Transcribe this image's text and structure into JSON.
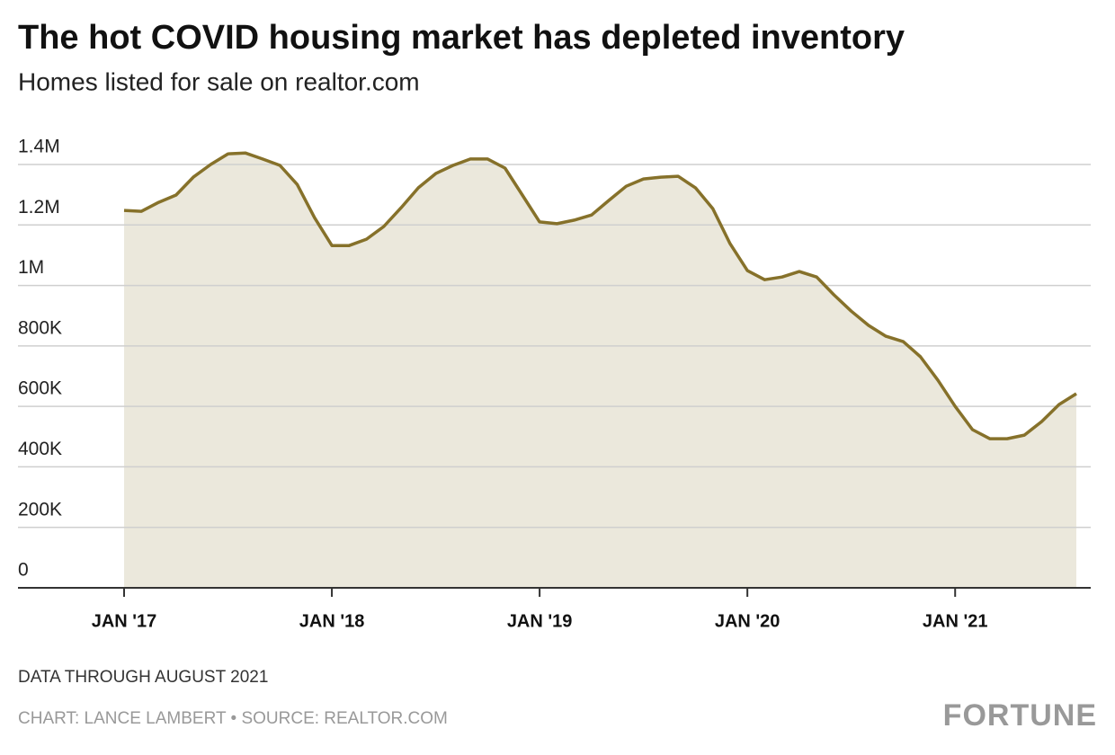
{
  "chart_data": {
    "type": "area",
    "title": "The hot COVID housing market has depleted inventory",
    "subtitle": "Homes listed for sale on realtor.com",
    "note": "DATA THROUGH AUGUST 2021",
    "credit": "CHART: LANCE LAMBERT • SOURCE: REALTOR.COM",
    "brand": "FORTUNE",
    "categories": [
      "JAN '17",
      null,
      null,
      null,
      null,
      null,
      null,
      null,
      null,
      null,
      null,
      null,
      "JAN '18",
      null,
      null,
      null,
      null,
      null,
      null,
      null,
      null,
      null,
      null,
      null,
      "JAN '19",
      null,
      null,
      null,
      null,
      null,
      null,
      null,
      null,
      null,
      null,
      null,
      "JAN '20",
      null,
      null,
      null,
      null,
      null,
      null,
      null,
      null,
      null,
      null,
      null,
      "JAN '21",
      null,
      null,
      null,
      null,
      null,
      null,
      null
    ],
    "values": [
      1248000,
      1245000,
      1275000,
      1299000,
      1358000,
      1400000,
      1435000,
      1438000,
      1418000,
      1397000,
      1334000,
      1224000,
      1132000,
      1132000,
      1153000,
      1195000,
      1257000,
      1323000,
      1370000,
      1397000,
      1418000,
      1418000,
      1388000,
      1299000,
      1210000,
      1204000,
      1216000,
      1233000,
      1281000,
      1328000,
      1352000,
      1358000,
      1361000,
      1323000,
      1254000,
      1138000,
      1049000,
      1019000,
      1028000,
      1046000,
      1028000,
      969000,
      915000,
      868000,
      832000,
      814000,
      764000,
      687000,
      600000,
      523000,
      493000,
      493000,
      505000,
      550000,
      606000,
      642000
    ],
    "color": "#86712a",
    "fill_color": "#ebe8dc",
    "ylim": [
      0,
      1400000
    ],
    "yticks": [
      0,
      {
        "value": 200000,
        "label": "200K"
      },
      {
        "value": 400000,
        "label": "400K"
      },
      {
        "value": 600000,
        "label": "600K"
      },
      {
        "value": 800000,
        "label": "800K"
      },
      {
        "value": 1000000,
        "label": "1M"
      },
      {
        "value": 1200000,
        "label": "1.2M"
      },
      {
        "value": 1400000,
        "label": "1.4M"
      }
    ],
    "grid": true
  }
}
